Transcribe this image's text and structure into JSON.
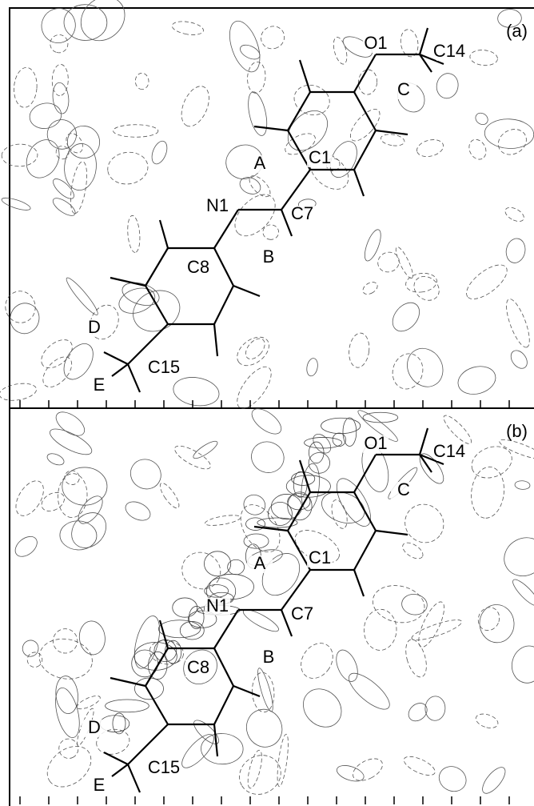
{
  "panels": [
    {
      "label": "(a)",
      "atoms": {
        "o1": "O1",
        "c14": "C14",
        "c": "C",
        "c1": "C1",
        "a": "A",
        "n1": "N1",
        "c7": "C7",
        "b": "B",
        "c8": "C8",
        "d": "D",
        "c15": "C15",
        "e": "E"
      }
    },
    {
      "label": "(b)",
      "atoms": {
        "o1": "O1",
        "c14": "C14",
        "c": "C",
        "c1": "C1",
        "a": "A",
        "n1": "N1",
        "c7": "C7",
        "b": "B",
        "c8": "C8",
        "d": "D",
        "c15": "C15",
        "e": "E"
      }
    }
  ]
}
